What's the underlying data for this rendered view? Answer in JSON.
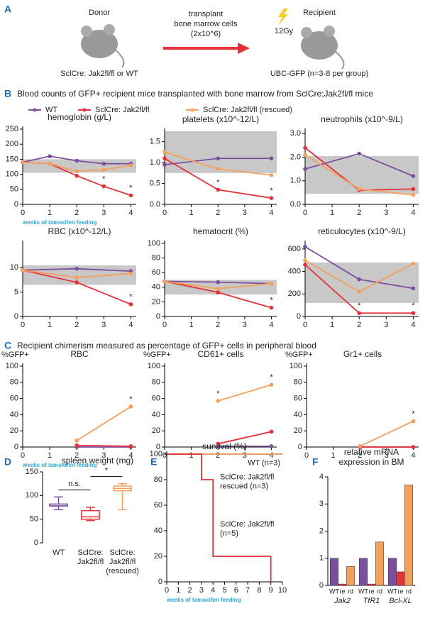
{
  "panels": [
    "A",
    "B",
    "C",
    "D",
    "E",
    "F"
  ],
  "diagram": {
    "donor": "Donor",
    "donor_genotype": "SclCre: Jak2fl/fl or WT",
    "arrow_text": [
      "transplant",
      "bone marrow cells",
      "(2x10^6)"
    ],
    "recipient": "Recipient",
    "dose": "12Gy",
    "recipient_genotype": "UBC-GFP (n=3-8 per group)"
  },
  "section_titles": {
    "B": "Blood counts of GFP+ recipient mice transplanted with bone marrow from SclCre;Jak2fl/fl mice",
    "C": "Recipient chimerism measured as percentage of GFP+ cells in peripheral blood"
  },
  "legend": [
    {
      "name": "WT",
      "color": "#7b4fa0"
    },
    {
      "name": "SclCre: Jak2fl/fl",
      "color": "#e8303a"
    },
    {
      "name": "SclCre: Jak2fl/fl (rescued)",
      "color": "#f5a05a"
    }
  ],
  "chart_data": [
    {
      "type": "line",
      "title": "hemoglobin (g/L)",
      "x_label": "weeks of tamoxifen feeding",
      "x": [
        0,
        1,
        2,
        3,
        4
      ],
      "xlim": [
        0,
        4.2
      ],
      "xticks": [
        0,
        1,
        2,
        3,
        4
      ],
      "ylim": [
        0,
        250
      ],
      "yticks": [
        0,
        50,
        100,
        150,
        200,
        250
      ],
      "normal_range": [
        105,
        150
      ],
      "series": [
        {
          "color": "#7b4fa0",
          "values": [
            140,
            160,
            145,
            135,
            135
          ]
        },
        {
          "color": "#e8303a",
          "values": [
            140,
            135,
            95,
            60,
            30
          ]
        },
        {
          "color": "#f5a05a",
          "values": [
            140,
            135,
            110,
            115,
            130
          ]
        }
      ],
      "annotations": [
        {
          "text": "*",
          "x": 3,
          "series": 1
        },
        {
          "text": "*",
          "x": 4,
          "series": 1
        }
      ]
    },
    {
      "type": "line",
      "title": "platelets (x10^-12/L)",
      "x": [
        0,
        2,
        4
      ],
      "xlim": [
        0,
        4.2
      ],
      "xticks": [
        0,
        1,
        2,
        3,
        4
      ],
      "ylim": [
        0,
        1.75
      ],
      "yticks": [
        {
          "value": 0,
          "label": "0.0"
        },
        {
          "value": 0.5,
          "label": "0.5"
        },
        {
          "value": 1,
          "label": "1.0"
        },
        {
          "value": 1.5,
          "label": "1.5"
        }
      ],
      "normal_range": [
        0.75,
        1.75
      ],
      "series": [
        {
          "color": "#7b4fa0",
          "values": [
            0.95,
            1.1,
            1.1
          ]
        },
        {
          "color": "#e8303a",
          "values": [
            1.1,
            0.35,
            0.15
          ]
        },
        {
          "color": "#f5a05a",
          "values": [
            1.25,
            0.85,
            0.7
          ]
        }
      ],
      "annotations": [
        {
          "text": "*",
          "x": 2,
          "series": 1
        },
        {
          "text": "*",
          "x": 4,
          "series": 1
        }
      ]
    },
    {
      "type": "line",
      "title": "neutrophils (x10^-9/L)",
      "x": [
        0,
        2,
        4
      ],
      "xlim": [
        0,
        4.2
      ],
      "xticks": [
        0,
        1,
        2,
        3,
        4
      ],
      "ylim": [
        0,
        3.1
      ],
      "yticks": [
        {
          "value": 0,
          "label": "0.0"
        },
        {
          "value": 1,
          "label": "1.0"
        },
        {
          "value": 2,
          "label": "2.0"
        },
        {
          "value": 3,
          "label": "3.0"
        }
      ],
      "normal_range": [
        0.45,
        2.05
      ],
      "series": [
        {
          "color": "#7b4fa0",
          "values": [
            1.5,
            2.15,
            1.2
          ]
        },
        {
          "color": "#e8303a",
          "values": [
            2.4,
            0.6,
            0.65
          ]
        },
        {
          "color": "#f5a05a",
          "values": [
            2.1,
            0.65,
            0.4
          ]
        }
      ]
    },
    {
      "type": "line",
      "title": "RBC (x10^-12/L)",
      "x": [
        0,
        2,
        4
      ],
      "xlim": [
        0,
        4.2
      ],
      "xticks": [
        0,
        1,
        2,
        3,
        4
      ],
      "ylim": [
        0,
        15
      ],
      "yticks": [
        0,
        5,
        10
      ],
      "normal_range": [
        6.5,
        10.5
      ],
      "series": [
        {
          "color": "#7b4fa0",
          "values": [
            9.5,
            9.8,
            9.3
          ]
        },
        {
          "color": "#e8303a",
          "values": [
            9.5,
            7,
            2.5
          ]
        },
        {
          "color": "#f5a05a",
          "values": [
            9.5,
            8,
            8.8
          ]
        }
      ],
      "annotations": [
        {
          "text": "*",
          "x": 4,
          "series": 1
        }
      ]
    },
    {
      "type": "line",
      "title": "hematocrit (%)",
      "x": [
        0,
        2,
        4
      ],
      "xlim": [
        0,
        4.2
      ],
      "xticks": [
        0,
        1,
        2,
        3,
        4
      ],
      "ylim": [
        0,
        100
      ],
      "yticks": [
        0,
        20,
        40,
        60,
        80,
        100
      ],
      "normal_range": [
        30,
        50
      ],
      "series": [
        {
          "color": "#7b4fa0",
          "values": [
            48,
            47,
            45
          ]
        },
        {
          "color": "#e8303a",
          "values": [
            48,
            33,
            12
          ]
        },
        {
          "color": "#f5a05a",
          "values": [
            48,
            38,
            45
          ]
        }
      ],
      "annotations": [
        {
          "text": "*",
          "x": 4,
          "series": 1
        }
      ]
    },
    {
      "type": "line",
      "title": "reticulocytes (x10^-9/L)",
      "x": [
        0,
        2,
        4
      ],
      "xlim": [
        0,
        4.2
      ],
      "xticks": [
        0,
        1,
        2,
        3,
        4
      ],
      "ylim": [
        0,
        650
      ],
      "yticks": [
        0,
        200,
        400,
        600
      ],
      "normal_range": [
        120,
        480
      ],
      "series": [
        {
          "color": "#7b4fa0",
          "values": [
            620,
            330,
            250
          ]
        },
        {
          "color": "#e8303a",
          "values": [
            460,
            30,
            30
          ]
        },
        {
          "color": "#f5a05a",
          "values": [
            500,
            220,
            470
          ]
        }
      ],
      "annotations": [
        {
          "text": "*",
          "x": 2,
          "series": 1
        },
        {
          "text": "*",
          "x": 4,
          "series": 1
        }
      ]
    },
    {
      "type": "line",
      "title": "RBC",
      "y_label": "%GFP+",
      "x_label": "weeks of tamoxifen feeding",
      "x": [
        2,
        4
      ],
      "xlim": [
        0,
        4.2
      ],
      "xticks": [
        0,
        1,
        2,
        3,
        4
      ],
      "ylim": [
        0,
        100
      ],
      "yticks": [
        0,
        20,
        40,
        60,
        80,
        100
      ],
      "series": [
        {
          "color": "#7b4fa0",
          "values": [
            0,
            0
          ]
        },
        {
          "color": "#e8303a",
          "values": [
            2,
            1
          ]
        },
        {
          "color": "#f5a05a",
          "values": [
            8,
            50
          ]
        }
      ],
      "annotations": [
        {
          "text": "*",
          "x": 4,
          "series": 2
        }
      ]
    },
    {
      "type": "line",
      "title": "CD61+ cells",
      "y_label": "%GFP+",
      "x": [
        2,
        4
      ],
      "xlim": [
        0,
        4.2
      ],
      "xticks": [
        0,
        1,
        2,
        3,
        4
      ],
      "ylim": [
        0,
        100
      ],
      "yticks": [
        0,
        20,
        40,
        60,
        80,
        100
      ],
      "series": [
        {
          "color": "#7b4fa0",
          "values": [
            1,
            1
          ]
        },
        {
          "color": "#e8303a",
          "values": [
            4,
            19
          ]
        },
        {
          "color": "#f5a05a",
          "values": [
            57,
            77
          ]
        }
      ],
      "annotations": [
        {
          "text": "*",
          "x": 2,
          "series": 2
        },
        {
          "text": "*",
          "x": 4,
          "series": 2
        }
      ]
    },
    {
      "type": "line",
      "title": "Gr1+ cells",
      "y_label": "%GFP+",
      "x": [
        2,
        4
      ],
      "xlim": [
        0,
        4.2
      ],
      "xticks": [
        0,
        1,
        2,
        3,
        4
      ],
      "ylim": [
        0,
        100
      ],
      "yticks": [
        0,
        20,
        40,
        60,
        80,
        100
      ],
      "series": [
        {
          "color": "#7b4fa0",
          "values": [
            0,
            0
          ]
        },
        {
          "color": "#e8303a",
          "values": [
            0,
            0
          ]
        },
        {
          "color": "#f5a05a",
          "values": [
            1,
            32
          ]
        }
      ],
      "annotations": [
        {
          "text": "*",
          "x": 4,
          "series": 2
        }
      ]
    },
    {
      "type": "box",
      "title": "spleen weight (mg)",
      "categories": [
        [
          "WT"
        ],
        [
          "SclCre:",
          "Jak2fl/fl"
        ],
        [
          "SclCre:",
          "Jak2fl/fl",
          "(rescued)"
        ]
      ],
      "ylim": [
        0,
        150
      ],
      "yticks": [
        0,
        50,
        100,
        150
      ],
      "colors": [
        "#7b4fa0",
        "#e8303a",
        "#f5a05a"
      ],
      "boxes": [
        {
          "min": 70,
          "q1": 78,
          "median": 78,
          "q3": 82,
          "max": 97
        },
        {
          "min": 47,
          "q1": 50,
          "median": 55,
          "q3": 68,
          "max": 75
        },
        {
          "min": 70,
          "q1": 110,
          "median": 115,
          "q3": 120,
          "max": 125
        }
      ],
      "annotations": [
        {
          "text": "n.s.",
          "between": [
            0,
            1
          ]
        },
        {
          "text": "*",
          "between": [
            1,
            2
          ]
        }
      ]
    },
    {
      "type": "step",
      "title": "survival (%)",
      "x_label": "weeks of tamoxifen feeding",
      "xlim": [
        0,
        10
      ],
      "xticks": [
        0,
        1,
        2,
        3,
        4,
        5,
        6,
        7,
        8,
        9,
        10
      ],
      "ylim": [
        0,
        100
      ],
      "yticks": [
        0,
        20,
        40,
        60,
        80,
        100
      ],
      "series": [
        {
          "name": [
            "WT (n=3)"
          ],
          "color": "#7b4fa0",
          "x": [
            0,
            10
          ],
          "values": [
            100,
            100
          ]
        },
        {
          "name": [
            "SclCre: Jak2fl/fl",
            "rescued (n=3)"
          ],
          "color": "#f5a05a",
          "x": [
            0,
            10
          ],
          "values": [
            100,
            100
          ]
        },
        {
          "name": [
            "SclCre: Jak2fl/fl",
            "(n=5)"
          ],
          "color": "#e8303a",
          "x": [
            0,
            3,
            3,
            4,
            4,
            9,
            9
          ],
          "values": [
            100,
            100,
            80,
            80,
            20,
            20,
            0
          ]
        }
      ]
    },
    {
      "type": "grouped_bar",
      "title": [
        "relative mRNA",
        "expression in BM"
      ],
      "categories": [
        "Jak2",
        "TfR1",
        "Bcl-XL"
      ],
      "subcategories": [
        "WT",
        "re",
        "rd"
      ],
      "ylim": [
        0,
        4
      ],
      "yticks": [
        0,
        1,
        2,
        3,
        4
      ],
      "series": [
        {
          "color": "#7b4fa0",
          "values": [
            1,
            1,
            1
          ]
        },
        {
          "color": "#e8303a",
          "values": [
            0.05,
            0.05,
            0.5
          ]
        },
        {
          "color": "#f5a05a",
          "values": [
            0.7,
            1.6,
            3.7
          ]
        }
      ]
    }
  ]
}
